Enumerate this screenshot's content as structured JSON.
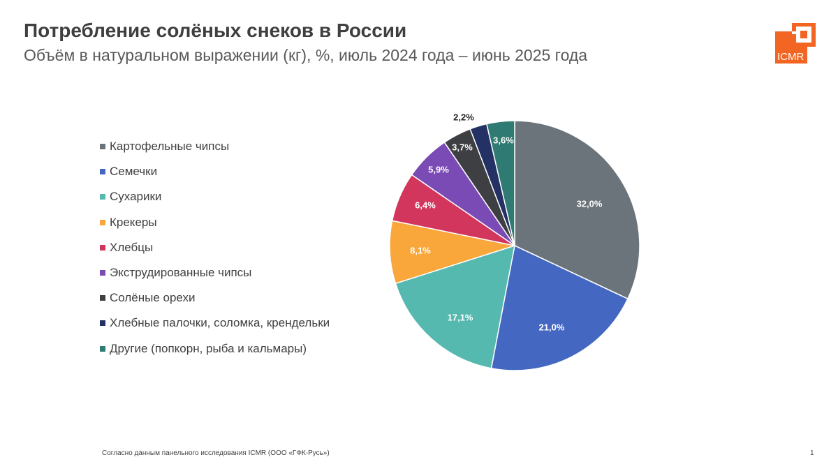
{
  "header": {
    "title": "Потребление солёных снеков в России",
    "subtitle": "Объём в натуральном выражении (кг), %, июль 2024 года – июнь 2025 года"
  },
  "logo": {
    "text": "ICMR",
    "color": "#F26522"
  },
  "chart_data": {
    "type": "pie",
    "title": "Потребление солёных снеков в России",
    "subtitle": "Объём в натуральном выражении (кг), %, июль 2024 года – июнь 2025 года",
    "legend_position": "left",
    "slices": [
      {
        "name": "Картофельные чипсы",
        "value": 32.0,
        "label": "32,0%",
        "color": "#6B747B"
      },
      {
        "name": "Семечки",
        "value": 21.0,
        "label": "21,0%",
        "color": "#4468C2"
      },
      {
        "name": "Сухарики",
        "value": 17.1,
        "label": "17,1%",
        "color": "#55B9AF"
      },
      {
        "name": "Крекеры",
        "value": 8.1,
        "label": "8,1%",
        "color": "#F9A63A"
      },
      {
        "name": "Хлебцы",
        "value": 6.4,
        "label": "6,4%",
        "color": "#D2365C"
      },
      {
        "name": "Экструдированные чипсы",
        "value": 5.9,
        "label": "5,9%",
        "color": "#7B4BB5"
      },
      {
        "name": "Солёные орехи",
        "value": 3.7,
        "label": "3,7%",
        "color": "#3D3F43"
      },
      {
        "name": "Хлебные палочки, соломка, крендельки",
        "value": 2.2,
        "label": "2,2%",
        "color": "#243164"
      },
      {
        "name": "Другие (попкорн, рыба и кальмары)",
        "value": 3.6,
        "label": "3,6%",
        "color": "#2F7A72"
      }
    ]
  },
  "footer": {
    "source": "Согласно данным панельного исследования ICMR (ООО «ГФК-Русь»)",
    "page_number": "1"
  }
}
